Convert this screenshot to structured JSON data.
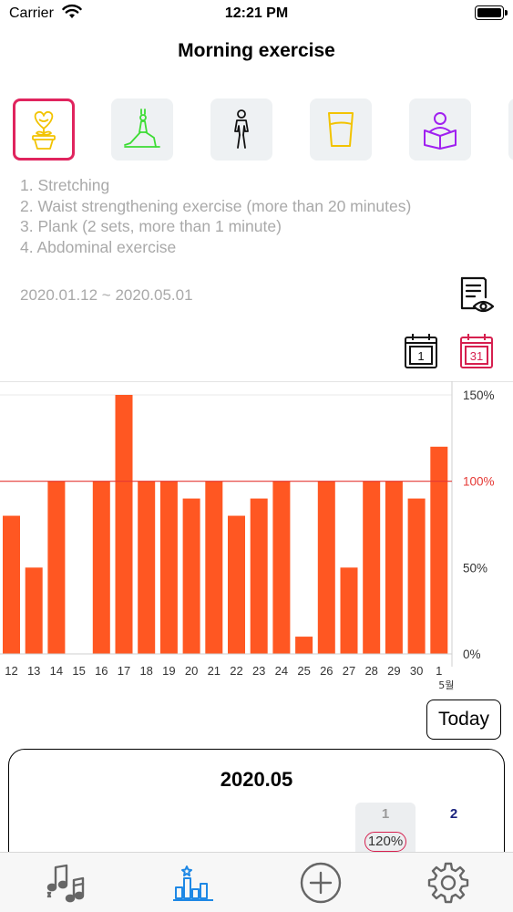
{
  "status_bar": {
    "carrier": "Carrier",
    "time": "12:21 PM"
  },
  "title": "Morning exercise",
  "categories": [
    {
      "name": "flower-pot-icon",
      "selected": true
    },
    {
      "name": "yoga-pose-icon",
      "selected": false
    },
    {
      "name": "walking-person-icon",
      "selected": false
    },
    {
      "name": "water-glass-icon",
      "selected": false
    },
    {
      "name": "reading-person-icon",
      "selected": false
    }
  ],
  "notes": [
    "1. Stretching",
    "2. Waist strengthening exercise (more than 20 minutes)",
    "3. Plank (2 sets, more than 1 minute)",
    "4. Abdominal exercise"
  ],
  "date_range": "2020.01.12 ~ 2020.05.01",
  "calendar_buttons": {
    "first": "1",
    "last": "31"
  },
  "colors": {
    "bar": "#ff5722",
    "target_line": "#e53935",
    "selected_border": "#e0245e",
    "pct_ring": "#d6204f"
  },
  "chart_data": {
    "type": "bar",
    "categories": [
      "12",
      "13",
      "14",
      "15",
      "16",
      "17",
      "18",
      "19",
      "20",
      "21",
      "22",
      "23",
      "24",
      "25",
      "26",
      "27",
      "28",
      "29",
      "30",
      "1"
    ],
    "values": [
      80,
      50,
      100,
      0,
      100,
      150,
      100,
      100,
      90,
      100,
      80,
      90,
      100,
      10,
      100,
      50,
      100,
      100,
      90,
      120
    ],
    "y_ticks": [
      "0%",
      "50%",
      "100%",
      "150%"
    ],
    "ylim": [
      0,
      150
    ],
    "month_marker": "5월",
    "reference_line": 100,
    "reference_label": "100%"
  },
  "today_button": "Today",
  "month_card": {
    "title": "2020.05",
    "day1": {
      "num": "1",
      "pct": "120%"
    },
    "day2": {
      "num": "2"
    }
  }
}
